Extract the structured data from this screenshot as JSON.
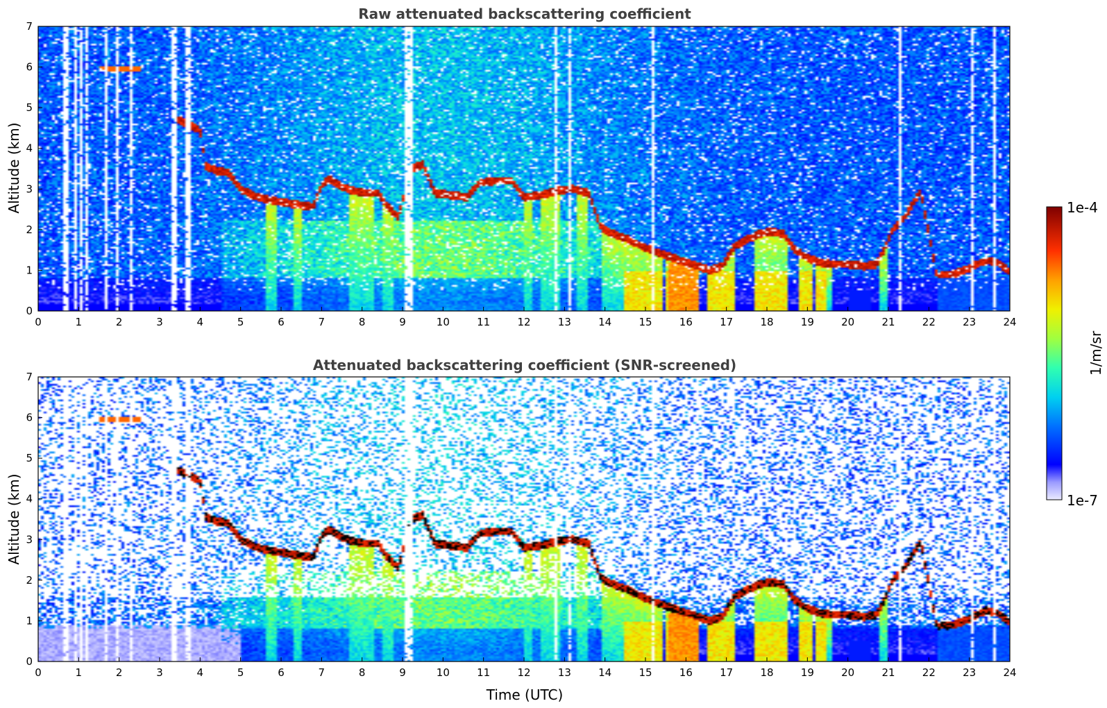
{
  "chart_data": [
    {
      "type": "heatmap",
      "title": "Raw attenuated backscattering coefficient",
      "xlabel": "",
      "ylabel": "Altitude (km)",
      "xlim": [
        0,
        24
      ],
      "ylim": [
        0,
        7
      ],
      "xticks": [
        "0",
        "1",
        "2",
        "3",
        "4",
        "5",
        "6",
        "7",
        "8",
        "9",
        "10",
        "11",
        "12",
        "13",
        "14",
        "15",
        "16",
        "17",
        "18",
        "19",
        "20",
        "21",
        "22",
        "23",
        "24"
      ],
      "yticks": [
        "0",
        "1",
        "2",
        "3",
        "4",
        "5",
        "6",
        "7"
      ],
      "screened": false
    },
    {
      "type": "heatmap",
      "title": "Attenuated backscattering coefficient (SNR-screened)",
      "xlabel": "Time (UTC)",
      "ylabel": "Altitude (km)",
      "xlim": [
        0,
        24
      ],
      "ylim": [
        0,
        7
      ],
      "xticks": [
        "0",
        "1",
        "2",
        "3",
        "4",
        "5",
        "6",
        "7",
        "8",
        "9",
        "10",
        "11",
        "12",
        "13",
        "14",
        "15",
        "16",
        "17",
        "18",
        "19",
        "20",
        "21",
        "22",
        "23",
        "24"
      ],
      "yticks": [
        "0",
        "1",
        "2",
        "3",
        "4",
        "5",
        "6",
        "7"
      ],
      "screened": true
    }
  ],
  "cloud_layer": [
    [
      3.45,
      4.7
    ],
    [
      3.7,
      4.6
    ],
    [
      4.0,
      4.45
    ],
    [
      4.15,
      3.55
    ],
    [
      4.4,
      3.45
    ],
    [
      4.7,
      3.4
    ],
    [
      5.0,
      3.0
    ],
    [
      5.3,
      2.85
    ],
    [
      5.6,
      2.75
    ],
    [
      5.9,
      2.7
    ],
    [
      6.2,
      2.65
    ],
    [
      6.5,
      2.6
    ],
    [
      6.8,
      2.55
    ],
    [
      7.0,
      3.1
    ],
    [
      7.2,
      3.25
    ],
    [
      7.5,
      3.05
    ],
    [
      7.8,
      2.95
    ],
    [
      8.1,
      2.9
    ],
    [
      8.4,
      2.9
    ],
    [
      8.6,
      2.6
    ],
    [
      8.9,
      2.3
    ],
    [
      9.2,
      3.5
    ],
    [
      9.5,
      3.6
    ],
    [
      9.8,
      2.9
    ],
    [
      10.2,
      2.85
    ],
    [
      10.6,
      2.8
    ],
    [
      10.9,
      3.15
    ],
    [
      11.3,
      3.2
    ],
    [
      11.7,
      3.2
    ],
    [
      12.0,
      2.8
    ],
    [
      12.4,
      2.85
    ],
    [
      12.8,
      2.95
    ],
    [
      13.2,
      3.0
    ],
    [
      13.6,
      2.9
    ],
    [
      13.9,
      2.05
    ],
    [
      14.2,
      1.9
    ],
    [
      14.6,
      1.75
    ],
    [
      15.0,
      1.55
    ],
    [
      15.4,
      1.4
    ],
    [
      15.7,
      1.3
    ],
    [
      16.0,
      1.2
    ],
    [
      16.3,
      1.1
    ],
    [
      16.6,
      1.0
    ],
    [
      16.9,
      1.1
    ],
    [
      17.2,
      1.6
    ],
    [
      17.5,
      1.75
    ],
    [
      17.8,
      1.9
    ],
    [
      18.1,
      1.95
    ],
    [
      18.4,
      1.9
    ],
    [
      18.7,
      1.5
    ],
    [
      19.0,
      1.3
    ],
    [
      19.3,
      1.2
    ],
    [
      19.6,
      1.15
    ],
    [
      20.0,
      1.15
    ],
    [
      20.4,
      1.1
    ],
    [
      20.7,
      1.15
    ],
    [
      20.9,
      1.5
    ],
    [
      21.1,
      2.0
    ],
    [
      21.4,
      2.3
    ],
    [
      21.7,
      2.8
    ],
    [
      21.8,
      2.95
    ],
    [
      22.2,
      0.85
    ],
    [
      22.6,
      0.9
    ],
    [
      23.0,
      1.05
    ],
    [
      23.4,
      1.25
    ],
    [
      23.7,
      1.2
    ],
    [
      24.0,
      0.95
    ]
  ],
  "colorbar": {
    "min_label": "1e-7",
    "max_label": "1e-4",
    "unit_label": "1/m/sr",
    "colormap": "jet-like (blue → cyan → green → yellow → red → dark red)",
    "colors": [
      "#ebebff",
      "#b4b4ff",
      "#6e6eff",
      "#0000ff",
      "#0050ff",
      "#00a0ff",
      "#00e6e6",
      "#40ff9c",
      "#a0ff40",
      "#e6f000",
      "#ffc800",
      "#ff7800",
      "#ff2800",
      "#d20000",
      "#7f0000"
    ]
  }
}
